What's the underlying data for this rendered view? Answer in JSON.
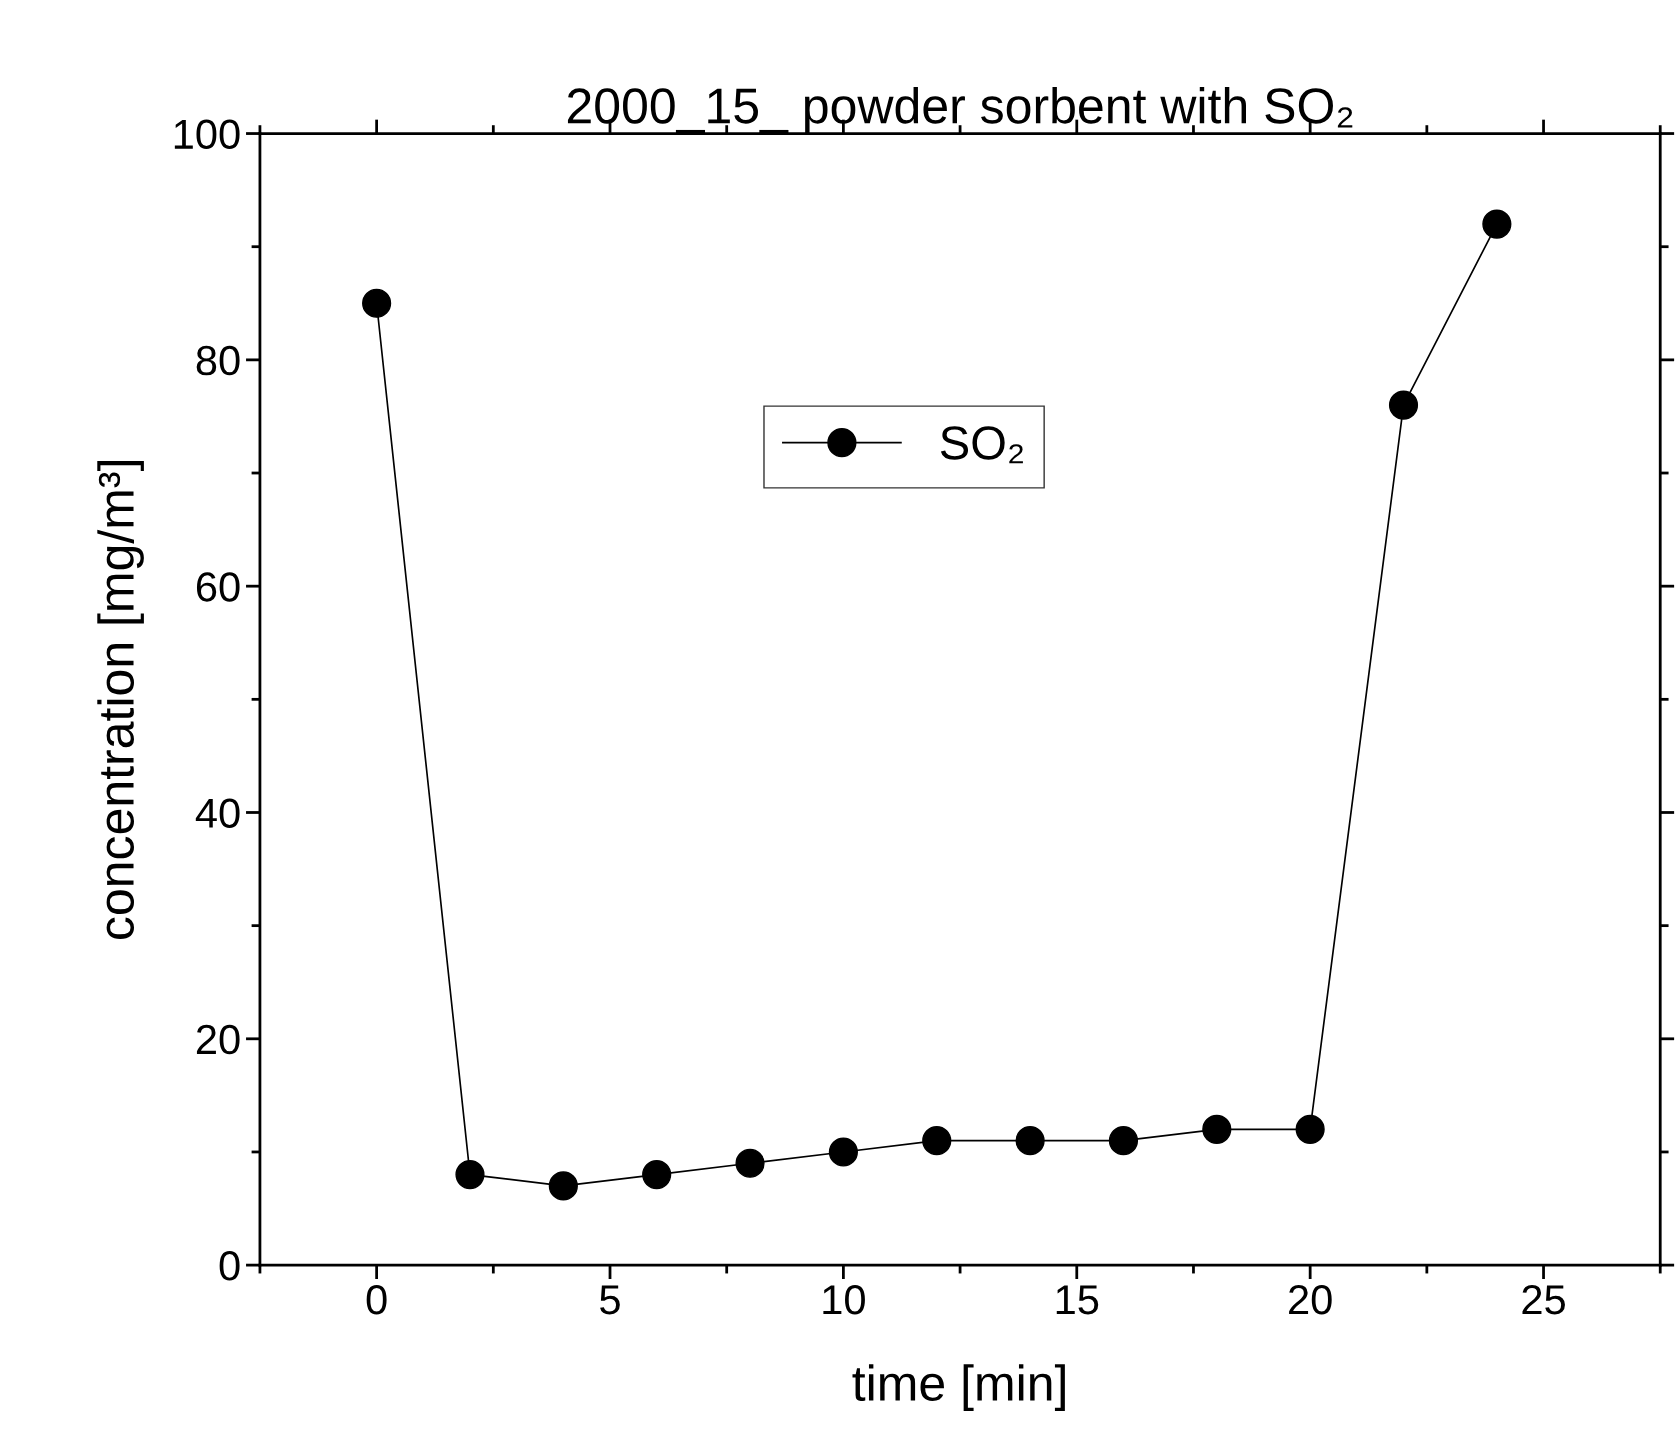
{
  "chart_data": {
    "type": "line",
    "title": "2000_15_ powder sorbent with SO₂",
    "xlabel": "time [min]",
    "ylabel": "concentration [mg/m³]",
    "x": [
      0,
      2,
      4,
      6,
      8,
      10,
      12,
      14,
      16,
      18,
      20,
      22,
      24
    ],
    "series": [
      {
        "name": "SO₂",
        "color": "#000000",
        "values": [
          85,
          8,
          7,
          8,
          9,
          10,
          11,
          11,
          11,
          12,
          12,
          76,
          92
        ]
      }
    ],
    "xlim": [
      -2.5,
      27.5
    ],
    "xticks": [
      0,
      5,
      10,
      15,
      20,
      25
    ],
    "ylim": [
      0,
      100
    ],
    "yticks": [
      0,
      20,
      40,
      60,
      80,
      100
    ],
    "marker": "circle",
    "line_style": "solid",
    "grid": false,
    "legend": "top"
  }
}
